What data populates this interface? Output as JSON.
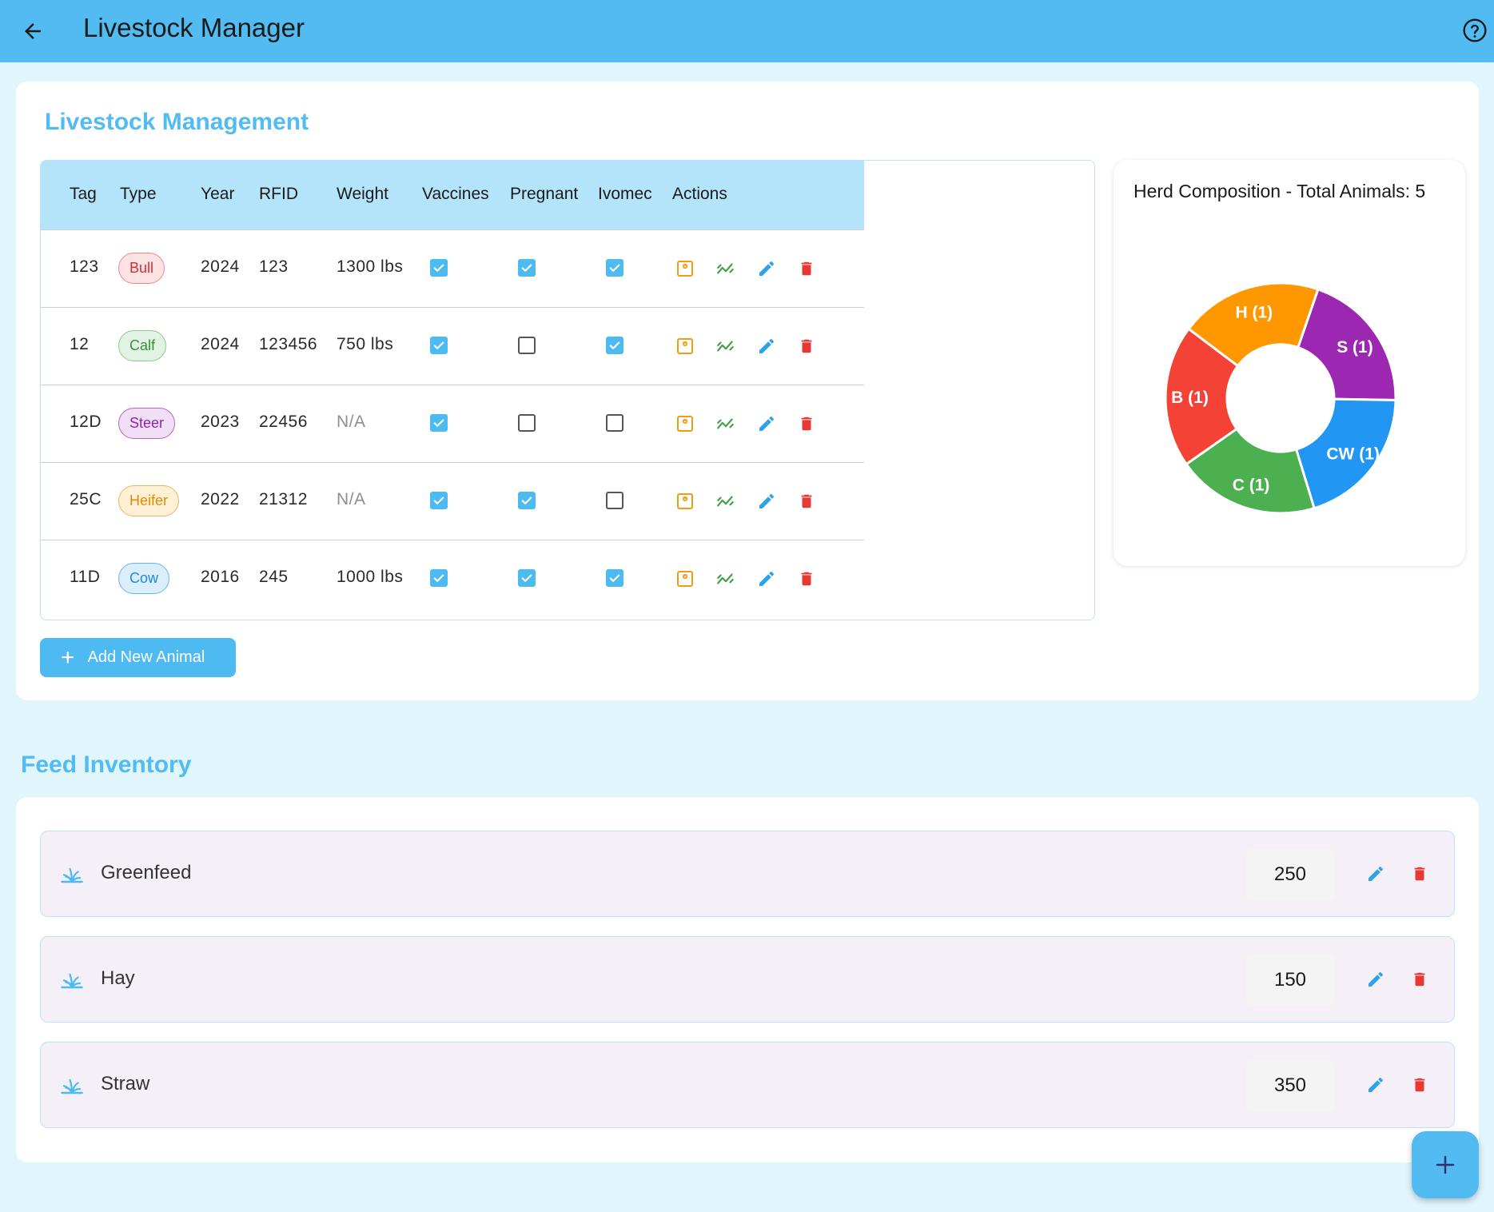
{
  "appbar": {
    "title": "Livestock Manager",
    "back_icon": "arrow-left-icon",
    "help_icon": "help-circle-icon",
    "color": "#52bbf2"
  },
  "livestock": {
    "title": "Livestock Management",
    "columns": [
      "Tag",
      "Type",
      "Year",
      "RFID",
      "Weight",
      "Vaccines",
      "Pregnant",
      "Ivomec",
      "Actions"
    ],
    "rows": [
      {
        "tag": "123",
        "type": "Bull",
        "year": "2024",
        "rfid": "123",
        "weight": "1300 lbs",
        "vaccines": true,
        "pregnant": true,
        "ivomec": true
      },
      {
        "tag": "12",
        "type": "Calf",
        "year": "2024",
        "rfid": "123456",
        "weight": "750 lbs",
        "vaccines": true,
        "pregnant": false,
        "ivomec": true
      },
      {
        "tag": "12D",
        "type": "Steer",
        "year": "2023",
        "rfid": "22456",
        "weight": "N/A",
        "vaccines": true,
        "pregnant": false,
        "ivomec": false
      },
      {
        "tag": "25C",
        "type": "Heifer",
        "year": "2022",
        "rfid": "21312",
        "weight": "N/A",
        "vaccines": true,
        "pregnant": true,
        "ivomec": false
      },
      {
        "tag": "11D",
        "type": "Cow",
        "year": "2016",
        "rfid": "245",
        "weight": "1000 lbs",
        "vaccines": true,
        "pregnant": true,
        "ivomec": true
      }
    ],
    "row_action_icons": [
      "scale-icon",
      "trend-icon",
      "edit-icon",
      "delete-icon"
    ],
    "add_button_label": "Add New Animal"
  },
  "herd_chart": {
    "title": "Herd Composition - Total Animals: 5"
  },
  "chart_data": {
    "type": "pie",
    "donut": true,
    "categories": [
      "S (1)",
      "CW (1)",
      "C (1)",
      "B (1)",
      "H (1)"
    ],
    "values": [
      1,
      1,
      1,
      1,
      1
    ],
    "colors": [
      "#9c27b0",
      "#2196f3",
      "#4caf50",
      "#f44336",
      "#ff9800"
    ],
    "title": "Herd Composition - Total Animals: 5"
  },
  "feed": {
    "title": "Feed Inventory",
    "items": [
      {
        "name": "Greenfeed",
        "quantity": "250"
      },
      {
        "name": "Hay",
        "quantity": "150"
      },
      {
        "name": "Straw",
        "quantity": "350"
      }
    ],
    "item_icon": "grass-icon"
  },
  "fab": {
    "icon": "plus-icon"
  }
}
